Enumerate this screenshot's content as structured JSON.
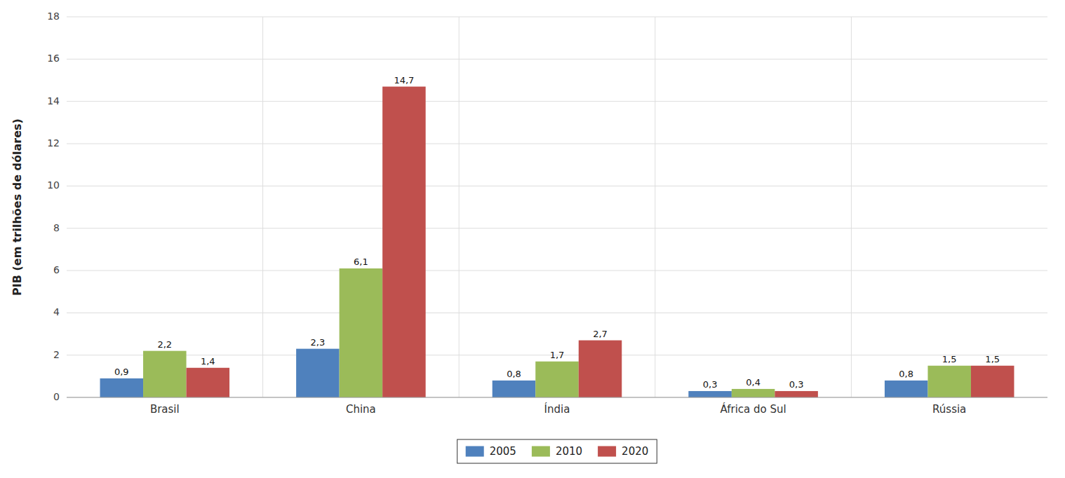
{
  "chart_data": {
    "type": "bar",
    "ylabel": "PIB (em trilhões de dólares)",
    "categories": [
      "Brasil",
      "China",
      "Índia",
      "África do Sul",
      "Rússia"
    ],
    "series": [
      {
        "name": "2005",
        "color": "#4f81bd",
        "values": [
          0.9,
          2.3,
          0.8,
          0.3,
          0.8
        ],
        "value_labels": [
          "0,9",
          "2,3",
          "0,8",
          "0,3",
          "0,8"
        ]
      },
      {
        "name": "2010",
        "color": "#9bbb59",
        "values": [
          2.2,
          6.1,
          1.7,
          0.4,
          1.5
        ],
        "value_labels": [
          "2,2",
          "6,1",
          "1,7",
          "0,4",
          "1,5"
        ]
      },
      {
        "name": "2020",
        "color": "#c0504d",
        "values": [
          1.4,
          14.7,
          2.7,
          0.3,
          1.5
        ],
        "value_labels": [
          "1,4",
          "14,7",
          "2,7",
          "0,3",
          "1,5"
        ]
      }
    ],
    "ylim": [
      0,
      18
    ],
    "yticks": [
      0,
      2,
      4,
      6,
      8,
      10,
      12,
      14,
      16,
      18
    ],
    "grid": true,
    "legend": "bottom",
    "data_labels": true
  }
}
